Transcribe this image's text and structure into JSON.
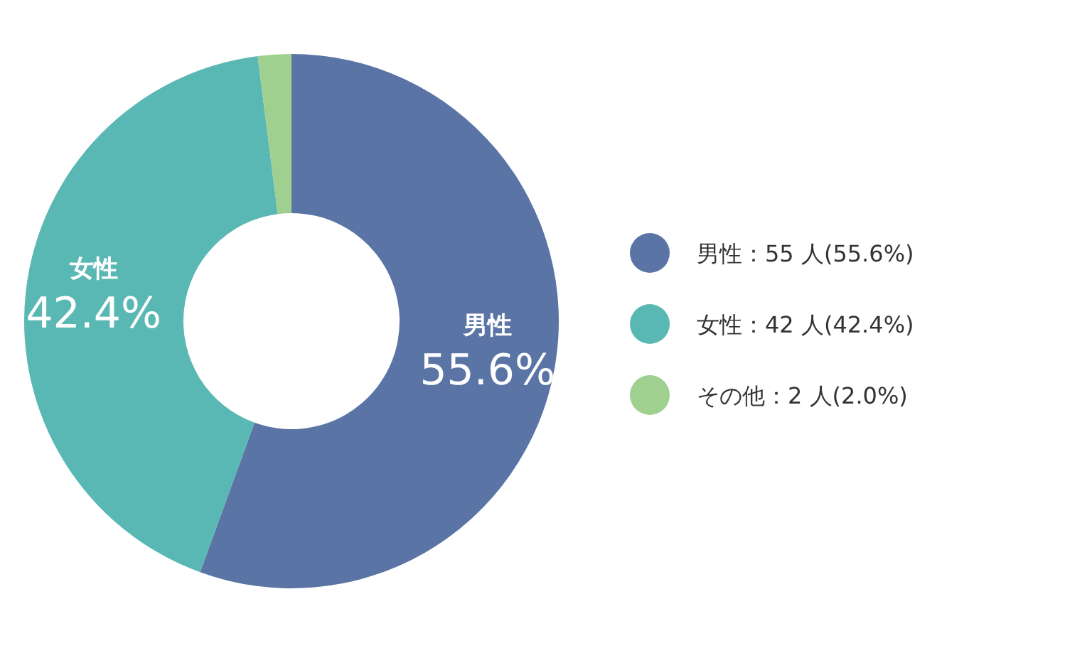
{
  "chart_data": {
    "type": "donut",
    "categories": [
      "男性：55 人(55.6%)",
      "女性：42 人(42.4%)",
      "その他：2 人(2.0%)"
    ],
    "values": [
      55,
      42,
      2
    ],
    "colors": [
      "#5a74a5",
      "#5ab8b4",
      "#9fd08f"
    ],
    "value_labels": [
      "男性\n55.6%",
      "女性\n42.4%",
      null
    ],
    "legend": "right"
  }
}
